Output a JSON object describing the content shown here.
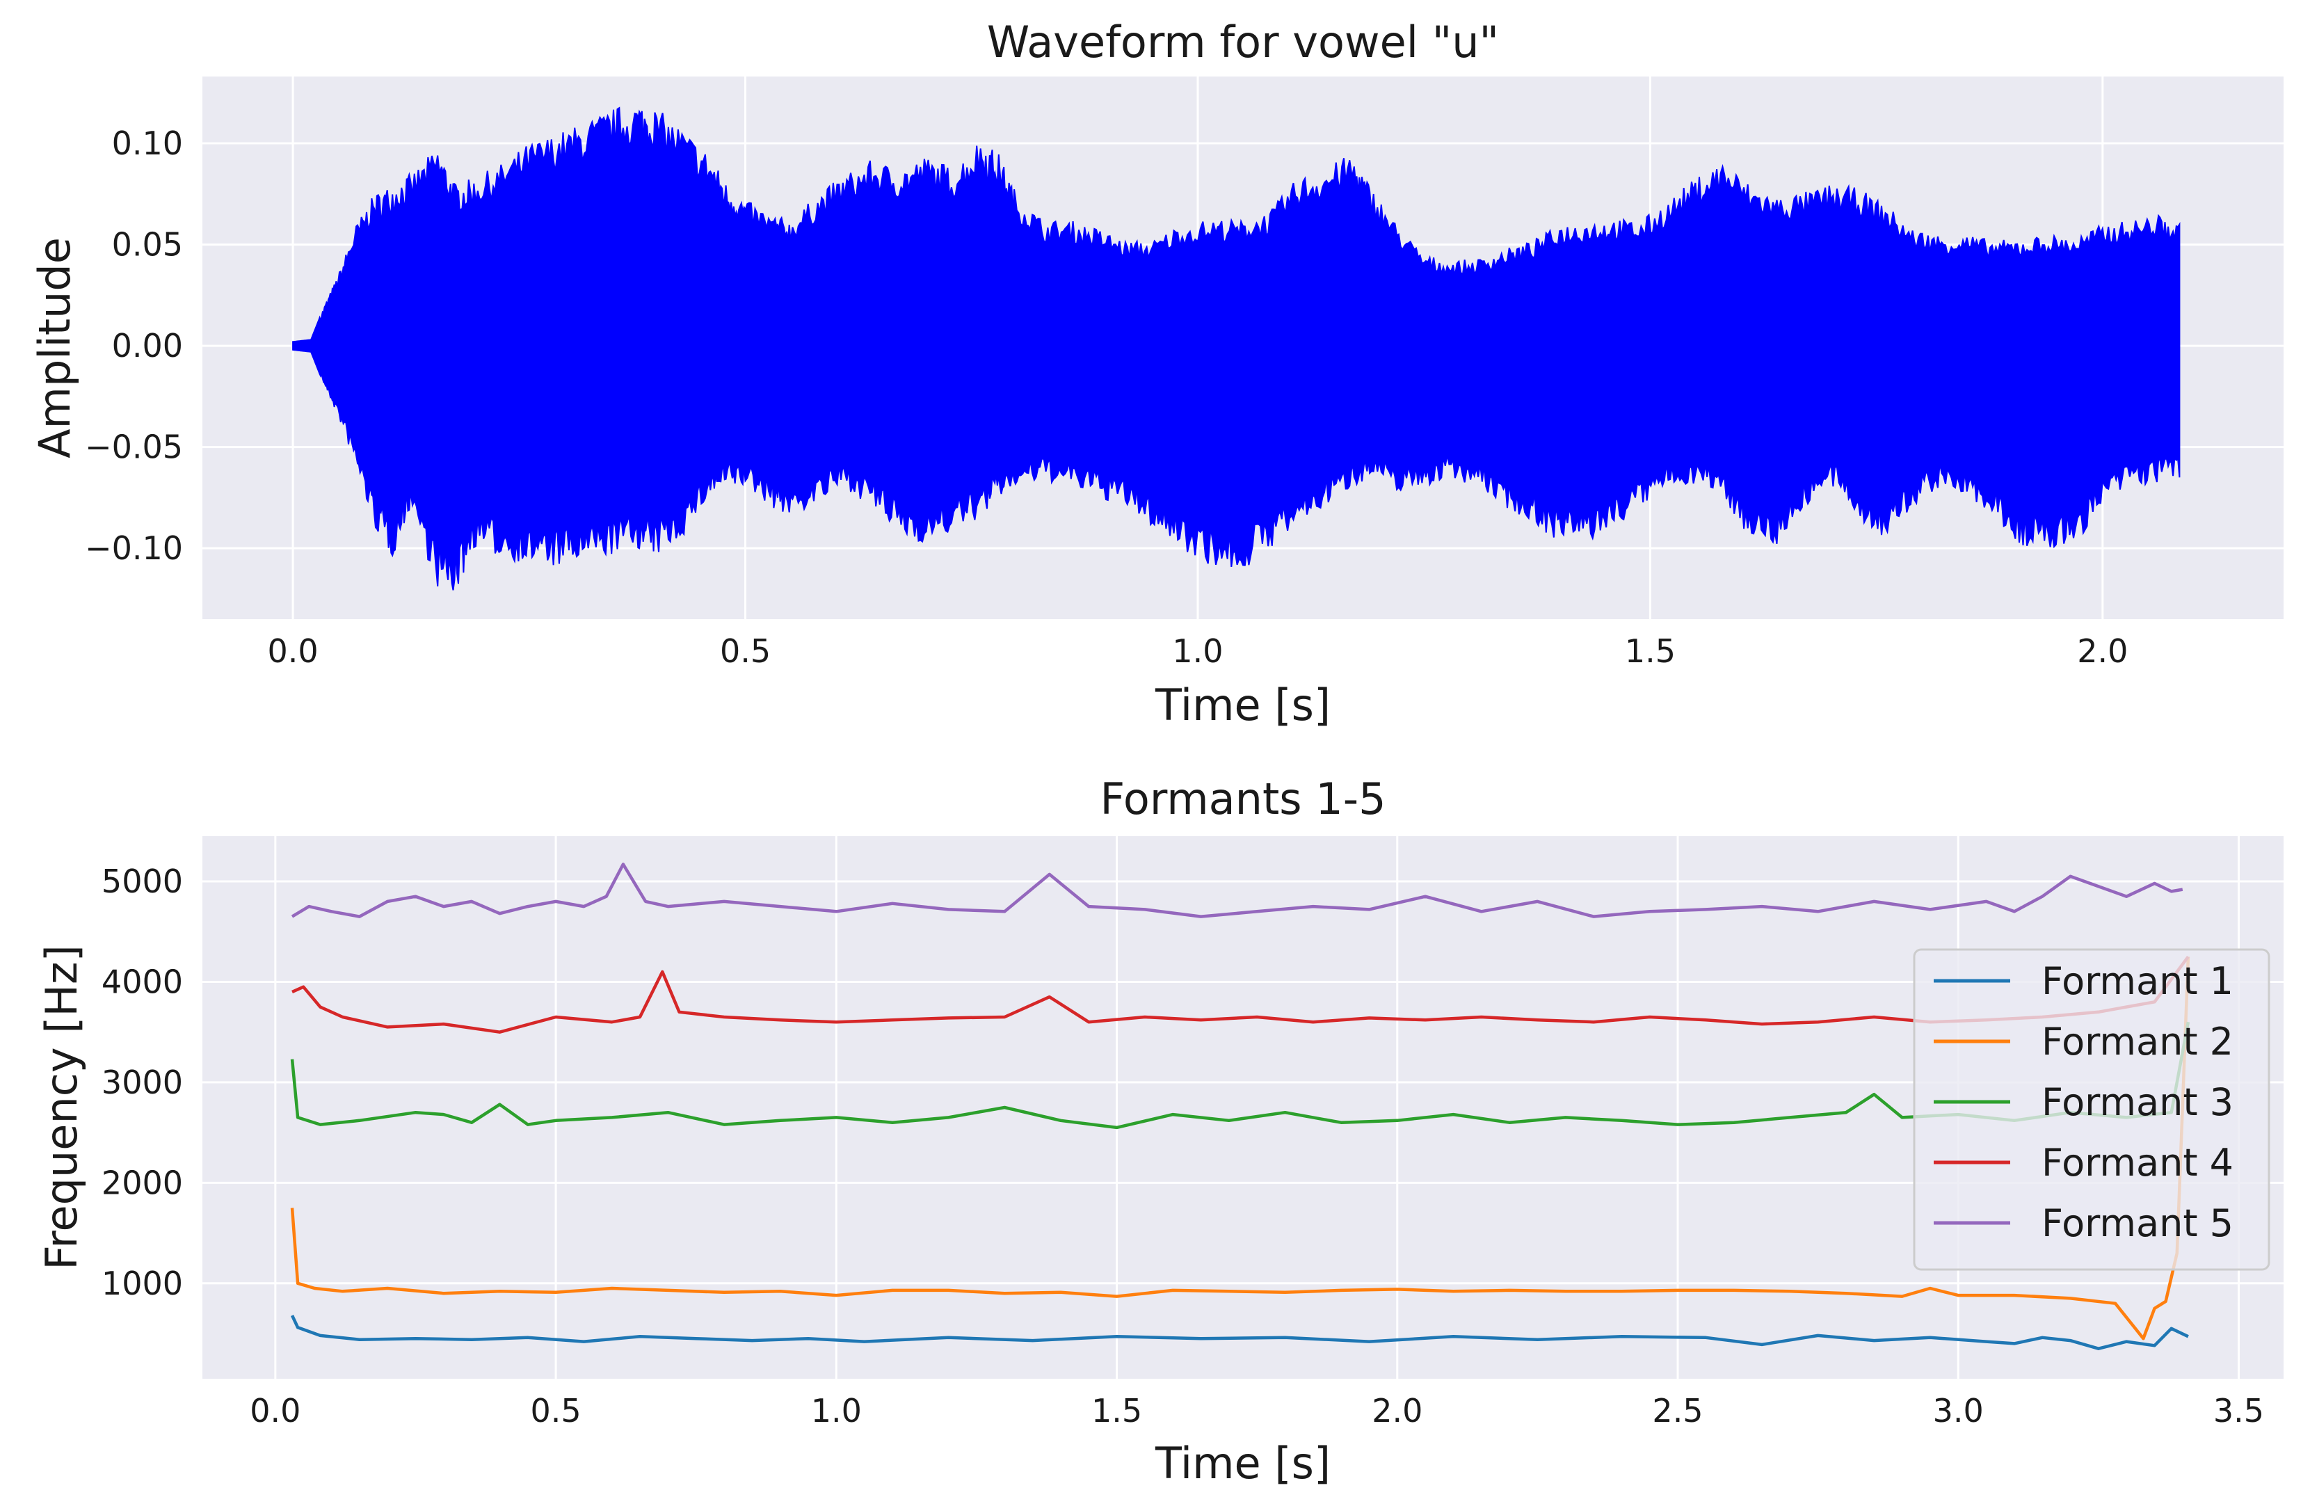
{
  "chart_data": [
    {
      "type": "line",
      "title": "Waveform for vowel \"u\"",
      "xlabel": "Time [s]",
      "ylabel": "Amplitude",
      "xlim": [
        -0.1,
        2.2
      ],
      "ylim": [
        -0.135,
        0.133
      ],
      "xticks": [
        0.0,
        0.5,
        1.0,
        1.5,
        2.0
      ],
      "xtick_labels": [
        "0.0",
        "0.5",
        "1.0",
        "1.5",
        "2.0"
      ],
      "yticks": [
        -0.1,
        -0.05,
        0.0,
        0.05,
        0.1
      ],
      "ytick_labels": [
        "−0.10",
        "−0.05",
        "0.00",
        "0.05",
        "0.10"
      ],
      "grid": true,
      "color": "#0000ff",
      "series": [
        {
          "x": [
            0.0,
            0.02,
            0.035,
            0.05,
            0.07,
            0.09,
            0.11,
            0.13,
            0.16,
            0.18,
            0.2,
            0.23,
            0.26,
            0.29,
            0.32,
            0.35,
            0.38,
            0.4,
            0.43,
            0.46,
            0.48,
            0.5,
            0.53,
            0.55,
            0.58,
            0.61,
            0.64,
            0.67,
            0.7,
            0.73,
            0.76,
            0.78,
            0.8,
            0.83,
            0.86,
            0.89,
            0.92,
            0.95,
            0.98,
            1.02,
            1.05,
            1.08,
            1.11,
            1.14,
            1.17,
            1.19,
            1.22,
            1.25,
            1.28,
            1.31,
            1.34,
            1.37,
            1.4,
            1.43,
            1.46,
            1.49,
            1.52,
            1.55,
            1.58,
            1.61,
            1.64,
            1.67,
            1.7,
            1.73,
            1.76,
            1.79,
            1.82,
            1.85,
            1.88,
            1.91,
            1.94,
            1.97,
            2.0,
            2.03,
            2.06,
            2.085
          ],
          "upper": [
            0.002,
            0.003,
            0.02,
            0.035,
            0.06,
            0.075,
            0.08,
            0.085,
            0.098,
            0.08,
            0.083,
            0.09,
            0.1,
            0.105,
            0.11,
            0.117,
            0.121,
            0.118,
            0.108,
            0.095,
            0.08,
            0.072,
            0.065,
            0.062,
            0.075,
            0.085,
            0.092,
            0.088,
            0.094,
            0.088,
            0.103,
            0.095,
            0.075,
            0.062,
            0.062,
            0.058,
            0.052,
            0.052,
            0.06,
            0.063,
            0.062,
            0.067,
            0.083,
            0.088,
            0.095,
            0.08,
            0.06,
            0.045,
            0.042,
            0.043,
            0.048,
            0.052,
            0.06,
            0.062,
            0.063,
            0.062,
            0.072,
            0.083,
            0.092,
            0.08,
            0.074,
            0.076,
            0.08,
            0.078,
            0.07,
            0.058,
            0.055,
            0.055,
            0.052,
            0.053,
            0.055,
            0.054,
            0.06,
            0.062,
            0.065,
            0.06
          ],
          "lower": [
            -0.002,
            -0.003,
            -0.02,
            -0.035,
            -0.06,
            -0.09,
            -0.105,
            -0.08,
            -0.12,
            -0.123,
            -0.1,
            -0.105,
            -0.108,
            -0.11,
            -0.108,
            -0.104,
            -0.1,
            -0.105,
            -0.095,
            -0.075,
            -0.07,
            -0.07,
            -0.08,
            -0.085,
            -0.078,
            -0.07,
            -0.08,
            -0.094,
            -0.098,
            -0.092,
            -0.085,
            -0.075,
            -0.07,
            -0.067,
            -0.07,
            -0.075,
            -0.08,
            -0.09,
            -0.1,
            -0.11,
            -0.112,
            -0.1,
            -0.09,
            -0.08,
            -0.07,
            -0.065,
            -0.072,
            -0.07,
            -0.065,
            -0.07,
            -0.08,
            -0.088,
            -0.097,
            -0.098,
            -0.09,
            -0.08,
            -0.07,
            -0.068,
            -0.075,
            -0.095,
            -0.099,
            -0.08,
            -0.07,
            -0.085,
            -0.097,
            -0.08,
            -0.07,
            -0.075,
            -0.085,
            -0.1,
            -0.102,
            -0.098,
            -0.08,
            -0.07,
            -0.068,
            -0.065
          ]
        }
      ]
    },
    {
      "type": "line",
      "title": "Formants 1-5",
      "xlabel": "Time [s]",
      "ylabel": "Frequency [Hz]",
      "xlim": [
        -0.13,
        3.58
      ],
      "ylim": [
        50,
        5450
      ],
      "xticks": [
        0.0,
        0.5,
        1.0,
        1.5,
        2.0,
        2.5,
        3.0,
        3.5
      ],
      "xtick_labels": [
        "0.0",
        "0.5",
        "1.0",
        "1.5",
        "2.0",
        "2.5",
        "3.0",
        "3.5"
      ],
      "yticks": [
        1000,
        2000,
        3000,
        4000,
        5000
      ],
      "ytick_labels": [
        "1000",
        "2000",
        "3000",
        "4000",
        "5000"
      ],
      "grid": true,
      "legend_position": "center-right",
      "series": [
        {
          "name": "Formant 1",
          "color": "#1f77b4",
          "x": [
            0.03,
            0.04,
            0.08,
            0.15,
            0.25,
            0.35,
            0.45,
            0.55,
            0.65,
            0.75,
            0.85,
            0.95,
            1.05,
            1.2,
            1.35,
            1.5,
            1.65,
            1.8,
            1.95,
            2.1,
            2.25,
            2.4,
            2.55,
            2.65,
            2.75,
            2.85,
            2.95,
            3.05,
            3.1,
            3.15,
            3.2,
            3.25,
            3.3,
            3.35,
            3.38,
            3.41
          ],
          "y": [
            680,
            560,
            480,
            440,
            450,
            440,
            460,
            420,
            470,
            450,
            430,
            450,
            420,
            460,
            430,
            470,
            450,
            460,
            420,
            470,
            440,
            470,
            460,
            390,
            480,
            430,
            460,
            420,
            400,
            460,
            430,
            350,
            420,
            380,
            550,
            470
          ]
        },
        {
          "name": "Formant 2",
          "color": "#ff7f0e",
          "x": [
            0.03,
            0.04,
            0.07,
            0.12,
            0.2,
            0.3,
            0.4,
            0.5,
            0.6,
            0.7,
            0.8,
            0.9,
            1.0,
            1.1,
            1.2,
            1.3,
            1.4,
            1.5,
            1.6,
            1.7,
            1.8,
            1.9,
            2.0,
            2.1,
            2.2,
            2.3,
            2.4,
            2.5,
            2.6,
            2.7,
            2.8,
            2.9,
            2.95,
            3.0,
            3.1,
            3.2,
            3.28,
            3.33,
            3.35,
            3.37,
            3.39,
            3.41
          ],
          "y": [
            1750,
            1000,
            950,
            920,
            950,
            900,
            920,
            910,
            950,
            930,
            910,
            920,
            880,
            930,
            930,
            900,
            910,
            870,
            930,
            920,
            910,
            930,
            940,
            920,
            930,
            920,
            920,
            930,
            930,
            920,
            900,
            870,
            950,
            880,
            880,
            850,
            800,
            450,
            750,
            820,
            1300,
            4250
          ]
        },
        {
          "name": "Formant 3",
          "color": "#2ca02c",
          "x": [
            0.03,
            0.04,
            0.08,
            0.15,
            0.25,
            0.3,
            0.35,
            0.4,
            0.45,
            0.5,
            0.6,
            0.7,
            0.8,
            0.9,
            1.0,
            1.1,
            1.2,
            1.3,
            1.4,
            1.5,
            1.6,
            1.7,
            1.8,
            1.9,
            2.0,
            2.1,
            2.2,
            2.3,
            2.4,
            2.5,
            2.6,
            2.7,
            2.8,
            2.85,
            2.9,
            3.0,
            3.1,
            3.2,
            3.3,
            3.38,
            3.41
          ],
          "y": [
            3230,
            2650,
            2580,
            2620,
            2700,
            2680,
            2600,
            2780,
            2580,
            2620,
            2650,
            2700,
            2580,
            2620,
            2650,
            2600,
            2650,
            2750,
            2620,
            2550,
            2680,
            2620,
            2700,
            2600,
            2620,
            2680,
            2600,
            2650,
            2620,
            2580,
            2600,
            2650,
            2700,
            2880,
            2650,
            2680,
            2620,
            2700,
            2650,
            2700,
            3600
          ]
        },
        {
          "name": "Formant 4",
          "color": "#d62728",
          "x": [
            0.03,
            0.05,
            0.08,
            0.12,
            0.2,
            0.3,
            0.4,
            0.5,
            0.6,
            0.65,
            0.69,
            0.72,
            0.8,
            0.9,
            1.0,
            1.1,
            1.2,
            1.3,
            1.38,
            1.45,
            1.55,
            1.65,
            1.75,
            1.85,
            1.95,
            2.05,
            2.15,
            2.25,
            2.35,
            2.45,
            2.55,
            2.65,
            2.75,
            2.85,
            2.95,
            3.05,
            3.15,
            3.25,
            3.35,
            3.41
          ],
          "y": [
            3900,
            3950,
            3750,
            3650,
            3550,
            3580,
            3500,
            3650,
            3600,
            3650,
            4100,
            3700,
            3650,
            3620,
            3600,
            3620,
            3640,
            3650,
            3850,
            3600,
            3650,
            3620,
            3650,
            3600,
            3640,
            3620,
            3650,
            3620,
            3600,
            3650,
            3620,
            3580,
            3600,
            3650,
            3600,
            3620,
            3650,
            3700,
            3800,
            4250
          ]
        },
        {
          "name": "Formant 5",
          "color": "#9467bd",
          "x": [
            0.03,
            0.06,
            0.1,
            0.15,
            0.2,
            0.25,
            0.3,
            0.35,
            0.4,
            0.45,
            0.5,
            0.55,
            0.59,
            0.62,
            0.66,
            0.7,
            0.8,
            0.9,
            1.0,
            1.1,
            1.2,
            1.3,
            1.38,
            1.45,
            1.55,
            1.65,
            1.75,
            1.85,
            1.95,
            2.05,
            2.15,
            2.25,
            2.35,
            2.45,
            2.55,
            2.65,
            2.75,
            2.85,
            2.95,
            3.05,
            3.1,
            3.15,
            3.2,
            3.25,
            3.3,
            3.35,
            3.38,
            3.4
          ],
          "y": [
            4650,
            4750,
            4700,
            4650,
            4800,
            4850,
            4750,
            4800,
            4680,
            4750,
            4800,
            4750,
            4850,
            5170,
            4800,
            4750,
            4800,
            4750,
            4700,
            4780,
            4720,
            4700,
            5070,
            4750,
            4720,
            4650,
            4700,
            4750,
            4720,
            4850,
            4700,
            4800,
            4650,
            4700,
            4720,
            4750,
            4700,
            4800,
            4720,
            4800,
            4700,
            4850,
            5050,
            4950,
            4850,
            4980,
            4900,
            4920
          ]
        }
      ]
    }
  ]
}
